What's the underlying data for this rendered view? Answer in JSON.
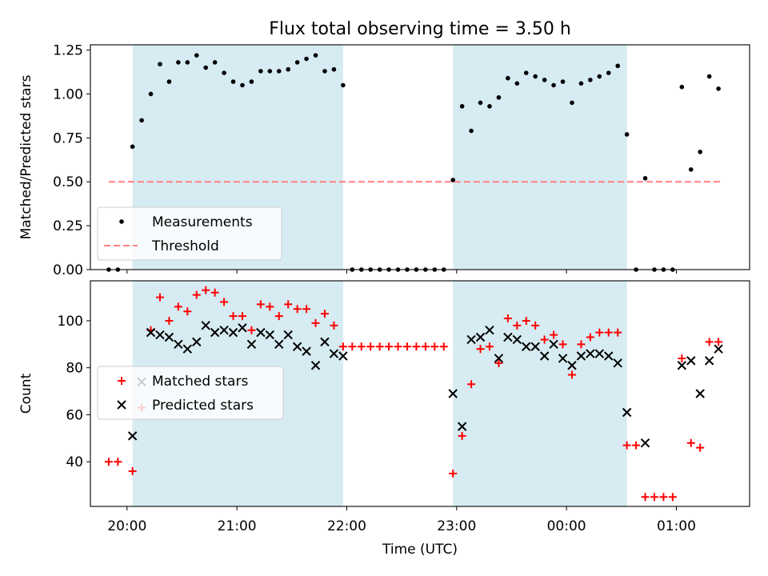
{
  "figure_title": "Flux total observing time = 3.50 h",
  "chart_data": [
    {
      "type": "scatter",
      "panel": "top",
      "title": "Flux total observing time = 3.50 h",
      "xlabel": "",
      "ylabel": "Matched/Predicted stars",
      "xlim": [
        "19:40",
        "01:40"
      ],
      "ylim": [
        0.0,
        1.28
      ],
      "yticks": [
        0.0,
        0.25,
        0.5,
        0.75,
        1.0,
        1.25
      ],
      "ytick_labels": [
        "0.00",
        "0.25",
        "0.50",
        "0.75",
        "1.00",
        "1.25"
      ],
      "legend_position": "lower-left",
      "shaded_intervals": [
        [
          "20:03",
          "21:58"
        ],
        [
          "22:58",
          "00:33"
        ]
      ],
      "series": [
        {
          "name": "Measurements",
          "marker": "dot",
          "color": "#000000",
          "points": [
            [
              "19:50",
              0.0
            ],
            [
              "19:55",
              0.0
            ],
            [
              "20:03",
              0.7
            ],
            [
              "20:08",
              0.85
            ],
            [
              "20:13",
              1.0
            ],
            [
              "20:18",
              1.17
            ],
            [
              "20:23",
              1.07
            ],
            [
              "20:28",
              1.18
            ],
            [
              "20:33",
              1.18
            ],
            [
              "20:38",
              1.22
            ],
            [
              "20:43",
              1.15
            ],
            [
              "20:48",
              1.18
            ],
            [
              "20:53",
              1.12
            ],
            [
              "20:58",
              1.07
            ],
            [
              "21:03",
              1.05
            ],
            [
              "21:08",
              1.07
            ],
            [
              "21:13",
              1.13
            ],
            [
              "21:18",
              1.13
            ],
            [
              "21:23",
              1.13
            ],
            [
              "21:28",
              1.14
            ],
            [
              "21:33",
              1.18
            ],
            [
              "21:38",
              1.2
            ],
            [
              "21:43",
              1.22
            ],
            [
              "21:48",
              1.13
            ],
            [
              "21:53",
              1.14
            ],
            [
              "21:58",
              1.05
            ],
            [
              "22:03",
              0.0
            ],
            [
              "22:08",
              0.0
            ],
            [
              "22:13",
              0.0
            ],
            [
              "22:18",
              0.0
            ],
            [
              "22:23",
              0.0
            ],
            [
              "22:28",
              0.0
            ],
            [
              "22:33",
              0.0
            ],
            [
              "22:38",
              0.0
            ],
            [
              "22:43",
              0.0
            ],
            [
              "22:48",
              0.0
            ],
            [
              "22:53",
              0.0
            ],
            [
              "22:58",
              0.51
            ],
            [
              "23:03",
              0.93
            ],
            [
              "23:08",
              0.79
            ],
            [
              "23:13",
              0.95
            ],
            [
              "23:18",
              0.93
            ],
            [
              "23:23",
              0.98
            ],
            [
              "23:28",
              1.09
            ],
            [
              "23:33",
              1.06
            ],
            [
              "23:38",
              1.12
            ],
            [
              "23:43",
              1.1
            ],
            [
              "23:48",
              1.08
            ],
            [
              "23:53",
              1.05
            ],
            [
              "23:58",
              1.07
            ],
            [
              "00:03",
              0.95
            ],
            [
              "00:08",
              1.06
            ],
            [
              "00:13",
              1.08
            ],
            [
              "00:18",
              1.1
            ],
            [
              "00:23",
              1.12
            ],
            [
              "00:28",
              1.16
            ],
            [
              "00:33",
              0.77
            ],
            [
              "00:38",
              0.0
            ],
            [
              "00:43",
              0.52
            ],
            [
              "00:48",
              0.0
            ],
            [
              "00:53",
              0.0
            ],
            [
              "00:58",
              0.0
            ],
            [
              "01:03",
              1.04
            ],
            [
              "01:08",
              0.57
            ],
            [
              "01:13",
              0.67
            ],
            [
              "01:18",
              1.1
            ],
            [
              "01:23",
              1.03
            ]
          ]
        },
        {
          "name": "Threshold",
          "marker": "dashed-line",
          "color": "#ff7f7f",
          "points": [
            [
              "19:50",
              0.5
            ],
            [
              "01:25",
              0.5
            ]
          ]
        }
      ]
    },
    {
      "type": "scatter",
      "panel": "bottom",
      "xlabel": "Time (UTC)",
      "ylabel": "Count",
      "xlim": [
        "19:40",
        "01:40"
      ],
      "ylim": [
        21,
        117
      ],
      "yticks": [
        40,
        60,
        80,
        100
      ],
      "ytick_labels": [
        "40",
        "60",
        "80",
        "100"
      ],
      "xticks": [
        "20:00",
        "21:00",
        "22:00",
        "23:00",
        "00:00",
        "01:00"
      ],
      "xtick_labels": [
        "20:00",
        "21:00",
        "22:00",
        "23:00",
        "00:00",
        "01:00"
      ],
      "legend_position": "center-left",
      "shaded_intervals": [
        [
          "20:03",
          "21:58"
        ],
        [
          "22:58",
          "00:33"
        ]
      ],
      "series": [
        {
          "name": "Matched stars",
          "marker": "plus",
          "color": "#ff0000",
          "points": [
            [
              "19:50",
              40
            ],
            [
              "19:55",
              40
            ],
            [
              "20:03",
              36
            ],
            [
              "20:08",
              63
            ],
            [
              "20:13",
              96
            ],
            [
              "20:18",
              110
            ],
            [
              "20:23",
              100
            ],
            [
              "20:28",
              106
            ],
            [
              "20:33",
              104
            ],
            [
              "20:38",
              111
            ],
            [
              "20:43",
              113
            ],
            [
              "20:48",
              112
            ],
            [
              "20:53",
              108
            ],
            [
              "20:58",
              102
            ],
            [
              "21:03",
              102
            ],
            [
              "21:08",
              96
            ],
            [
              "21:13",
              107
            ],
            [
              "21:18",
              106
            ],
            [
              "21:23",
              102
            ],
            [
              "21:28",
              107
            ],
            [
              "21:33",
              105
            ],
            [
              "21:38",
              105
            ],
            [
              "21:43",
              99
            ],
            [
              "21:48",
              103
            ],
            [
              "21:53",
              98
            ],
            [
              "21:58",
              89
            ],
            [
              "22:03",
              89
            ],
            [
              "22:08",
              89
            ],
            [
              "22:13",
              89
            ],
            [
              "22:18",
              89
            ],
            [
              "22:23",
              89
            ],
            [
              "22:28",
              89
            ],
            [
              "22:33",
              89
            ],
            [
              "22:38",
              89
            ],
            [
              "22:43",
              89
            ],
            [
              "22:48",
              89
            ],
            [
              "22:53",
              89
            ],
            [
              "22:58",
              35
            ],
            [
              "23:03",
              51
            ],
            [
              "23:08",
              73
            ],
            [
              "23:13",
              88
            ],
            [
              "23:18",
              89
            ],
            [
              "23:23",
              82
            ],
            [
              "23:28",
              101
            ],
            [
              "23:33",
              98
            ],
            [
              "23:38",
              100
            ],
            [
              "23:43",
              98
            ],
            [
              "23:48",
              92
            ],
            [
              "23:53",
              94
            ],
            [
              "23:58",
              90
            ],
            [
              "00:03",
              77
            ],
            [
              "00:08",
              90
            ],
            [
              "00:13",
              93
            ],
            [
              "00:18",
              95
            ],
            [
              "00:23",
              95
            ],
            [
              "00:28",
              95
            ],
            [
              "00:33",
              47
            ],
            [
              "00:38",
              47
            ],
            [
              "00:43",
              25
            ],
            [
              "00:48",
              25
            ],
            [
              "00:53",
              25
            ],
            [
              "00:58",
              25
            ],
            [
              "01:03",
              84
            ],
            [
              "01:08",
              48
            ],
            [
              "01:13",
              46
            ],
            [
              "01:18",
              91
            ],
            [
              "01:23",
              91
            ]
          ]
        },
        {
          "name": "Predicted stars",
          "marker": "x",
          "color": "#000000",
          "points": [
            [
              "20:03",
              51
            ],
            [
              "20:08",
              74
            ],
            [
              "20:13",
              95
            ],
            [
              "20:18",
              94
            ],
            [
              "20:23",
              93
            ],
            [
              "20:28",
              90
            ],
            [
              "20:33",
              88
            ],
            [
              "20:38",
              91
            ],
            [
              "20:43",
              98
            ],
            [
              "20:48",
              95
            ],
            [
              "20:53",
              96
            ],
            [
              "20:58",
              95
            ],
            [
              "21:03",
              97
            ],
            [
              "21:08",
              90
            ],
            [
              "21:13",
              95
            ],
            [
              "21:18",
              94
            ],
            [
              "21:23",
              90
            ],
            [
              "21:28",
              94
            ],
            [
              "21:33",
              89
            ],
            [
              "21:38",
              87
            ],
            [
              "21:43",
              81
            ],
            [
              "21:48",
              91
            ],
            [
              "21:53",
              86
            ],
            [
              "21:58",
              85
            ],
            [
              "22:58",
              69
            ],
            [
              "23:03",
              55
            ],
            [
              "23:08",
              92
            ],
            [
              "23:13",
              93
            ],
            [
              "23:18",
              96
            ],
            [
              "23:23",
              84
            ],
            [
              "23:28",
              93
            ],
            [
              "23:33",
              92
            ],
            [
              "23:38",
              89
            ],
            [
              "23:43",
              89
            ],
            [
              "23:48",
              85
            ],
            [
              "23:53",
              90
            ],
            [
              "23:58",
              84
            ],
            [
              "00:03",
              81
            ],
            [
              "00:08",
              85
            ],
            [
              "00:13",
              86
            ],
            [
              "00:18",
              86
            ],
            [
              "00:23",
              85
            ],
            [
              "00:28",
              82
            ],
            [
              "00:33",
              61
            ],
            [
              "00:43",
              48
            ],
            [
              "01:03",
              81
            ],
            [
              "01:08",
              83
            ],
            [
              "01:13",
              69
            ],
            [
              "01:18",
              83
            ],
            [
              "01:23",
              88
            ]
          ]
        }
      ]
    }
  ],
  "colors": {
    "shade": "#add8e6",
    "matched": "#ff0000",
    "predicted": "#000000",
    "measurements": "#000000",
    "threshold": "#ff7f7f"
  }
}
